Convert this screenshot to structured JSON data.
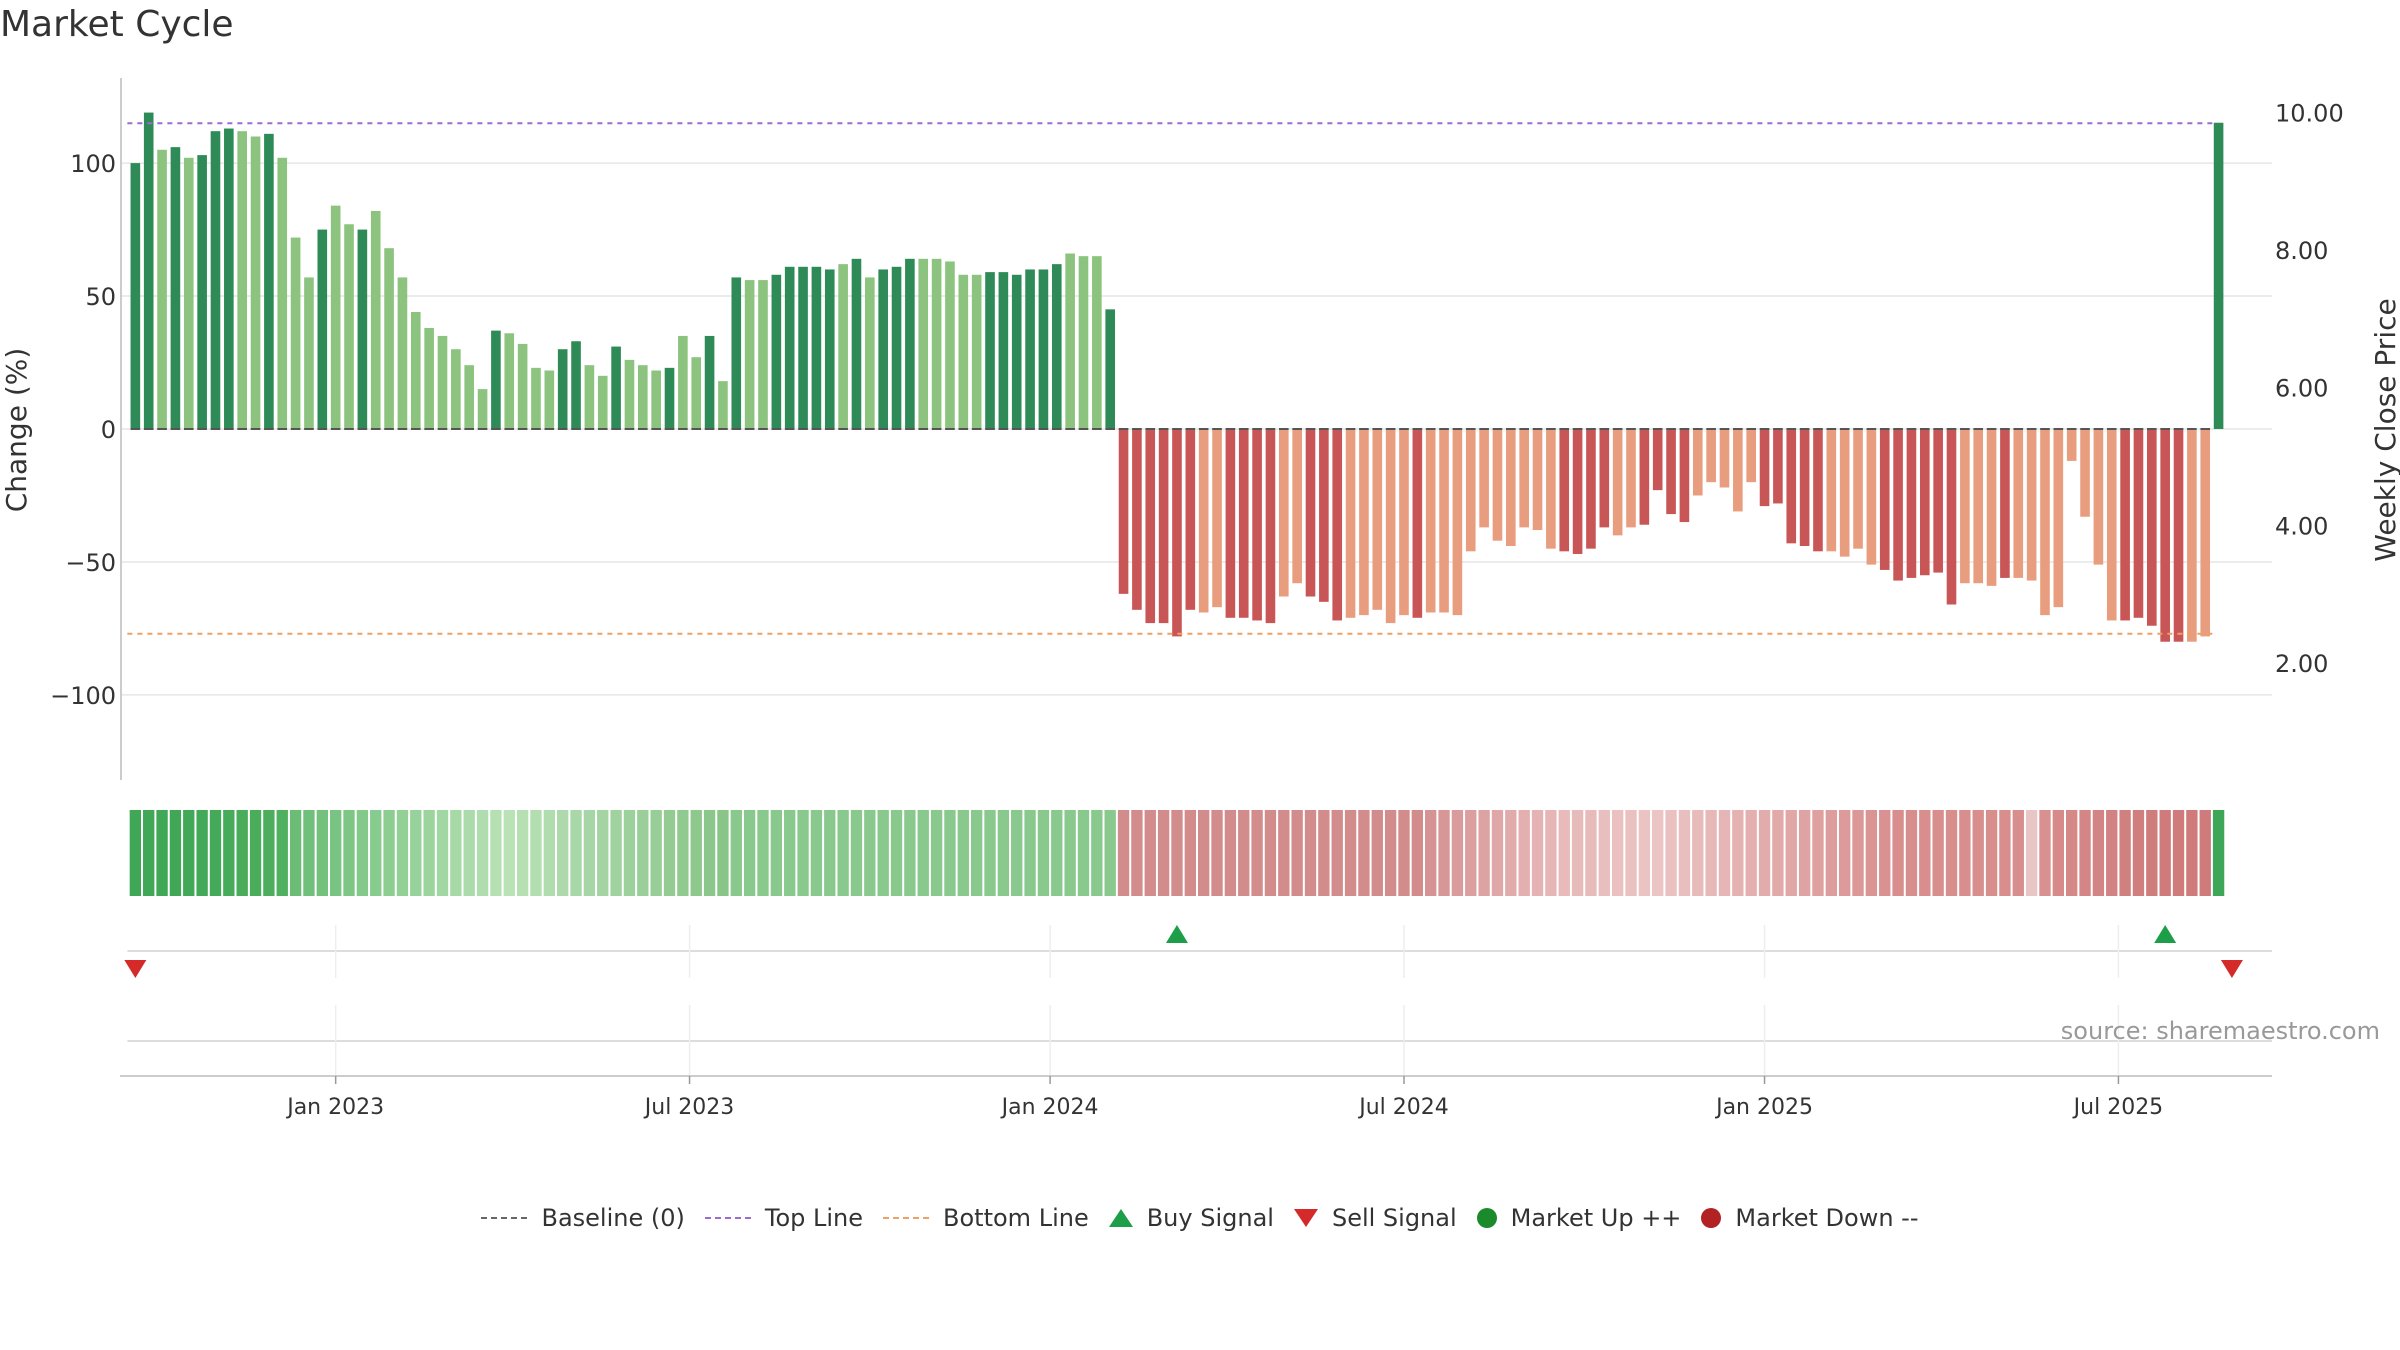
{
  "title": "Market Cycle",
  "source": "source: sharemaestro.com",
  "colors": {
    "green_dark": "#2e8b57",
    "green_light": "#8cc37e",
    "red_dark": "#c95656",
    "red_light": "#e99d7f",
    "top_line": "#9b6bd1",
    "bottom_line": "#f0a060",
    "buy": "#1e9e48",
    "sell": "#d42a2a",
    "market_up": "#1a8a2a",
    "market_down": "#b22222",
    "baseline": "#666666"
  },
  "chart_data": {
    "type": "bar",
    "title": "Market Cycle",
    "ylabel": "Change (%)",
    "y2label": "Weekly Close Price",
    "ylim": [
      -132,
      132
    ],
    "yticks": [
      100,
      50,
      0,
      -50,
      -100
    ],
    "ytick_labels": [
      "100",
      "50",
      "0",
      "−50",
      "−100"
    ],
    "y2lim": [
      0.3,
      10.5
    ],
    "y2ticks": [
      10,
      8,
      6,
      4,
      2
    ],
    "y2tick_labels": [
      "10.00",
      "8.00",
      "6.00",
      "4.00",
      "2.00"
    ],
    "top_line": 115,
    "bottom_line": -77,
    "weeks_range": [
      -1,
      160
    ],
    "x_ticks": [
      {
        "week": 15,
        "label": "Jan 2023"
      },
      {
        "week": 41.5,
        "label": "Jul 2023"
      },
      {
        "week": 68.5,
        "label": "Jan 2024"
      },
      {
        "week": 95,
        "label": "Jul 2024"
      },
      {
        "week": 122,
        "label": "Jan 2025"
      },
      {
        "week": 148.5,
        "label": "Jul 2025"
      }
    ],
    "values": [
      100,
      119,
      105,
      106,
      102,
      103,
      112,
      113,
      112,
      110,
      111,
      102,
      72,
      57,
      75,
      84,
      77,
      75,
      82,
      68,
      57,
      44,
      38,
      35,
      30,
      24,
      15,
      37,
      36,
      32,
      23,
      22,
      30,
      33,
      24,
      20,
      31,
      26,
      24,
      22,
      23,
      35,
      27,
      35,
      18,
      57,
      56,
      56,
      58,
      61,
      61,
      61,
      60,
      62,
      64,
      57,
      60,
      61,
      64,
      64,
      64,
      63,
      58,
      58,
      59,
      59,
      58,
      60,
      60,
      62,
      66,
      65,
      65,
      45,
      -62,
      -68,
      -73,
      -73,
      -78,
      -68,
      -69,
      -67,
      -71,
      -71,
      -72,
      -73,
      -63,
      -58,
      -63,
      -65,
      -72,
      -71,
      -70,
      -68,
      -73,
      -70,
      -71,
      -69,
      -69,
      -70,
      -46,
      -37,
      -42,
      -44,
      -37,
      -38,
      -45,
      -46,
      -47,
      -45,
      -37,
      -40,
      -37,
      -36,
      -23,
      -32,
      -35,
      -25,
      -20,
      -22,
      -31,
      -20,
      -29,
      -28,
      -43,
      -44,
      -46,
      -46,
      -48,
      -45,
      -51,
      -53,
      -57,
      -56,
      -55,
      -54,
      -66,
      -58,
      -58,
      -59,
      -56,
      -56,
      -57,
      -70,
      -67,
      -12,
      -33,
      -51,
      -72,
      -72,
      -71,
      -74,
      -80,
      -80,
      -80,
      -78
    ],
    "shades": "DDLDLDDDLLDLLLDLLDLLLLLLLLLDLLLLDDLLDLLLDLLDLDLLDDDDDLDLDDDLLLLLDDDDDDLLLDDDDDDDLLDDDDLLDDDLLLLLDLLLLLLLLLLDDDDLLDDDDLLLLLDDDDDLLLLDDDDDDLLLDLLLLLLLLDDDDDLLLDDDDDLL",
    "price_last": 9.85,
    "heat_last_color": "#3da657",
    "heat_colors": [
      "#3fa756",
      "#3fa756",
      "#3fa756",
      "#3fa756",
      "#41a857",
      "#43a958",
      "#44aa59",
      "#46ab5a",
      "#48ac5b",
      "#4aad5c",
      "#4cae5d",
      "#4fb05f",
      "#6bbd76",
      "#70bf7a",
      "#74c17e",
      "#79c482",
      "#7ec686",
      "#83c98a",
      "#88cb8e",
      "#8dcd92",
      "#92d096",
      "#97d29a",
      "#9cd49e",
      "#a1d7a2",
      "#a6d9a6",
      "#abdbaa",
      "#b0ddae",
      "#b5e0b2",
      "#b9e2b5",
      "#b6e0b2",
      "#b3dfb0",
      "#b0ddad",
      "#add9ab",
      "#a9d8a8",
      "#a6d6a5",
      "#a3d4a2",
      "#a0d29f",
      "#9dd19c",
      "#9acf99",
      "#97cd96",
      "#94cb93",
      "#91ca90",
      "#8ec88d",
      "#8bc68a",
      "#88c587",
      "#8ac98e",
      "#8ac98e",
      "#8ac98e",
      "#8ac98e",
      "#8ac98e",
      "#8ac98e",
      "#8ac98e",
      "#8ac98e",
      "#8ac98e",
      "#8ac98e",
      "#8ac98e",
      "#8ac98e",
      "#8ac98e",
      "#8ac98e",
      "#8ac98e",
      "#8ac98e",
      "#8ac98e",
      "#8ac98e",
      "#8ac98e",
      "#8ac98e",
      "#8ac98e",
      "#8ac98e",
      "#8ac98e",
      "#8ac98e",
      "#8ac98e",
      "#8ac98e",
      "#8ac98e",
      "#8ac98e",
      "#8ac98e",
      "#d38c8c",
      "#d38c8c",
      "#d38c8c",
      "#d38c8c",
      "#d38c8c",
      "#d38c8c",
      "#d38c8c",
      "#d38c8c",
      "#d38c8c",
      "#d38c8c",
      "#d38c8c",
      "#d38c8c",
      "#d38c8c",
      "#d38c8c",
      "#d38c8c",
      "#d38c8c",
      "#d38c8c",
      "#d38c8c",
      "#d38c8c",
      "#d38c8c",
      "#d38c8c",
      "#d38c8c",
      "#d38c8c",
      "#d59393",
      "#d79797",
      "#d99b9b",
      "#db9f9f",
      "#dda3a3",
      "#dfa7a7",
      "#e1abab",
      "#e3afaf",
      "#e5b3b3",
      "#e6b6b6",
      "#e8baba",
      "#e8bbbb",
      "#e8bbbb",
      "#e9bebe",
      "#eac0c0",
      "#eac1c1",
      "#ebc3c3",
      "#ebc4c4",
      "#eac1c1",
      "#e9bebe",
      "#e8bbbb",
      "#e7b8b8",
      "#e6b5b5",
      "#e5b2b2",
      "#e4afaf",
      "#e3acac",
      "#e2a9a9",
      "#e1a6a6",
      "#e0a3a3",
      "#dfa0a0",
      "#de9d9d",
      "#dd9a9a",
      "#dc9797",
      "#db9494",
      "#da9191",
      "#d98e8e",
      "#d98e8e",
      "#d98e8e",
      "#d98e8e",
      "#d98e8e",
      "#d98e8e",
      "#d98e8e",
      "#d98e8e",
      "#d98e8e",
      "#d98e8e",
      "#e8c6c6",
      "#d89090",
      "#d68a8a",
      "#d58888",
      "#d48686",
      "#d38484",
      "#d28282",
      "#d18080",
      "#d07e7e",
      "#cf7c7c",
      "#cf7b7b",
      "#cf7b7b"
    ],
    "buy_signals": [
      78,
      152
    ],
    "sell_signals": [
      0,
      157
    ]
  },
  "legend": [
    {
      "key": "baseline",
      "label": "Baseline (0)",
      "symbol": "dash"
    },
    {
      "key": "top",
      "label": "Top Line",
      "symbol": "dot"
    },
    {
      "key": "bottom",
      "label": "Bottom Line",
      "symbol": "dot-orange"
    },
    {
      "key": "buy",
      "label": "Buy Signal",
      "symbol": "tri-up"
    },
    {
      "key": "sell",
      "label": "Sell Signal",
      "symbol": "tri-down"
    },
    {
      "key": "up",
      "label": "Market Up ++",
      "symbol": "circle-green"
    },
    {
      "key": "down",
      "label": "Market Down --",
      "symbol": "circle-red"
    }
  ]
}
